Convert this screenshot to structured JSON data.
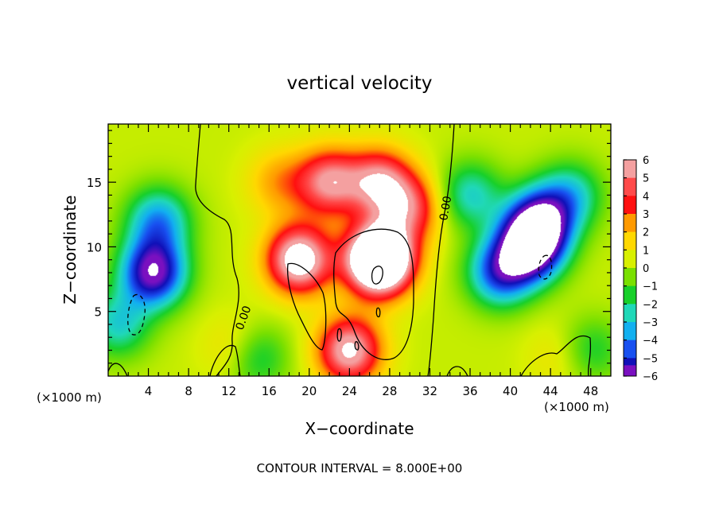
{
  "chart_data": {
    "type": "heatmap",
    "title": "vertical velocity",
    "xlabel": "X−coordinate",
    "ylabel": "Z−coordinate",
    "x_unit_label": "(×1000 m)",
    "y_unit_label": "(×1000 m)",
    "xlim": [
      0,
      50
    ],
    "ylim": [
      0,
      19.5
    ],
    "x_ticks": [
      4,
      8,
      12,
      16,
      20,
      24,
      28,
      32,
      36,
      40,
      44,
      48
    ],
    "y_ticks": [
      5,
      10,
      15
    ],
    "colorbar": {
      "levels": [
        6,
        5,
        4,
        3,
        2,
        1,
        0,
        -1,
        -2,
        -3,
        -4,
        -5,
        -6
      ],
      "labels": [
        "6",
        "5",
        "4",
        "3",
        "2",
        "1",
        "0",
        "−1",
        "−2",
        "−3",
        "−4",
        "−5",
        "−6"
      ],
      "colors": [
        "#f4a0a0",
        "#ff4a4a",
        "#ff1010",
        "#ff9a00",
        "#ffd800",
        "#d8f000",
        "#7ae000",
        "#18d02a",
        "#20d8b8",
        "#12b0f0",
        "#1850f0",
        "#1010b8",
        "#7a10c0"
      ]
    },
    "field_features": [
      {
        "x": 4.5,
        "z": 8,
        "w": -7
      },
      {
        "x": 5,
        "z": 12,
        "w": -4
      },
      {
        "x": 1,
        "z": 4,
        "w": -3
      },
      {
        "x": 13,
        "z": 2,
        "w": 2
      },
      {
        "x": 14.5,
        "z": 1.5,
        "w": -3
      },
      {
        "x": 17,
        "z": 15,
        "w": 2
      },
      {
        "x": 19,
        "z": 9,
        "w": 7
      },
      {
        "x": 22,
        "z": 15,
        "w": 5
      },
      {
        "x": 27,
        "z": 9,
        "w": 12
      },
      {
        "x": 27,
        "z": 15,
        "w": 5
      },
      {
        "x": 30,
        "z": 13,
        "w": 4
      },
      {
        "x": 24,
        "z": 2,
        "w": 6
      },
      {
        "x": 39,
        "z": 8,
        "w": -5
      },
      {
        "x": 42,
        "z": 10,
        "w": -8
      },
      {
        "x": 43,
        "z": 12,
        "w": -6
      },
      {
        "x": 46,
        "z": 14,
        "w": -3
      },
      {
        "x": 36,
        "z": 14,
        "w": -3
      },
      {
        "x": 45,
        "z": 1.5,
        "w": 1
      },
      {
        "x": 48,
        "z": 2,
        "w": -2
      }
    ],
    "contour_interval": 8.0,
    "contour_labels": [
      "0.00",
      "0.00"
    ],
    "footer": "CONTOUR INTERVAL = 8.000E+00",
    "legend": "right"
  }
}
